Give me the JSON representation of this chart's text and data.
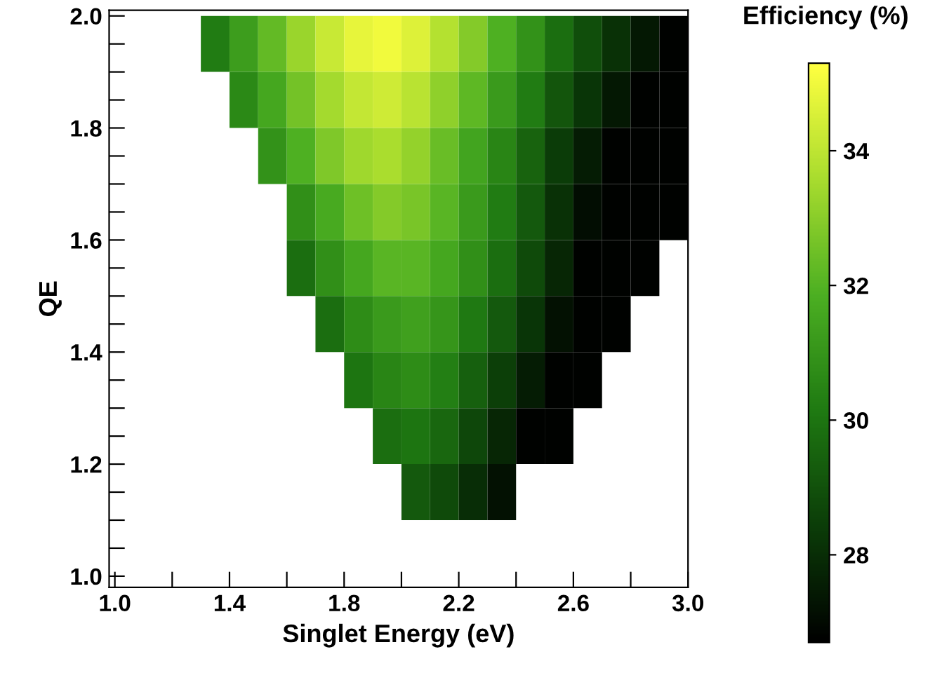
{
  "chart_data": {
    "type": "heatmap",
    "xlabel": "Singlet Energy (eV)",
    "ylabel": "QE",
    "clabel": "Efficiency (%)",
    "x": [
      1.05,
      1.15,
      1.25,
      1.35,
      1.45,
      1.55,
      1.65,
      1.75,
      1.85,
      1.95,
      2.05,
      2.15,
      2.25,
      2.35,
      2.45,
      2.55,
      2.65,
      2.75,
      2.85,
      2.95
    ],
    "y": [
      1.95,
      1.85,
      1.75,
      1.65,
      1.55,
      1.45,
      1.35,
      1.25,
      1.15
    ],
    "cells": [
      [
        null,
        null,
        null,
        30.2,
        31.3,
        32.3,
        33.3,
        34.2,
        34.8,
        35.0,
        34.6,
        33.8,
        32.9,
        31.9,
        30.9,
        29.8,
        28.9,
        28.1,
        27.4,
        26.8
      ],
      [
        null,
        null,
        null,
        null,
        30.6,
        31.6,
        32.6,
        33.5,
        34.1,
        34.3,
        33.9,
        33.1,
        32.2,
        31.2,
        30.2,
        29.1,
        28.2,
        27.4,
        26.8,
        26.8
      ],
      [
        null,
        null,
        null,
        null,
        null,
        30.9,
        31.9,
        32.8,
        33.4,
        33.6,
        33.2,
        32.4,
        31.5,
        30.5,
        29.5,
        28.4,
        27.5,
        26.8,
        26.8,
        26.8
      ],
      [
        null,
        null,
        null,
        null,
        null,
        null,
        30.8,
        31.7,
        32.5,
        32.9,
        32.7,
        32.1,
        31.2,
        30.2,
        29.2,
        28.1,
        27.1,
        26.8,
        26.8,
        26.8
      ],
      [
        null,
        null,
        null,
        null,
        null,
        null,
        29.8,
        30.8,
        31.6,
        32.1,
        32.1,
        31.6,
        30.8,
        29.8,
        28.8,
        27.8,
        26.8,
        26.8,
        26.8,
        null
      ],
      [
        null,
        null,
        null,
        null,
        null,
        null,
        null,
        29.8,
        30.7,
        31.2,
        31.4,
        31.0,
        30.1,
        29.2,
        28.2,
        27.2,
        26.8,
        26.8,
        null,
        null
      ],
      [
        null,
        null,
        null,
        null,
        null,
        null,
        null,
        null,
        30.0,
        30.5,
        30.7,
        30.3,
        29.4,
        28.5,
        27.5,
        26.8,
        26.8,
        null,
        null,
        null
      ],
      [
        null,
        null,
        null,
        null,
        null,
        null,
        null,
        null,
        null,
        29.8,
        30.0,
        29.6,
        28.7,
        27.8,
        26.8,
        26.8,
        null,
        null,
        null,
        null
      ],
      [
        null,
        null,
        null,
        null,
        null,
        null,
        null,
        null,
        null,
        null,
        29.2,
        28.8,
        28.0,
        27.2,
        null,
        null,
        null,
        null,
        null,
        null
      ]
    ],
    "colors": [
      "#000000",
      "#0b3d08",
      "#1f7a12",
      "#4caf22",
      "#a8dc2e",
      "#ffff40"
    ],
    "clim": [
      26.7,
      35.3
    ],
    "cticks": [
      28,
      30,
      32,
      34
    ],
    "xlim": [
      0.98,
      3.0
    ],
    "ylim": [
      0.98,
      2.01
    ],
    "xticks": [
      {
        "value": 1.0,
        "label": "1.0"
      },
      {
        "value": 1.2,
        "label": null
      },
      1.4,
      {
        "value": 1.6,
        "label": null
      },
      1.8,
      {
        "value": 2.0,
        "label": null
      },
      2.2,
      {
        "value": 2.4,
        "label": null
      },
      2.6,
      {
        "value": 2.8,
        "label": null
      },
      {
        "value": 3.0,
        "label": "3.0"
      }
    ],
    "yticks": [
      {
        "value": 1.0,
        "label": "1.0"
      },
      {
        "value": 1.05,
        "label": null
      },
      {
        "value": 1.1,
        "label": null
      },
      {
        "value": 1.15,
        "label": null
      },
      1.2,
      {
        "value": 1.25,
        "label": null
      },
      {
        "value": 1.3,
        "label": null
      },
      {
        "value": 1.35,
        "label": null
      },
      1.4,
      {
        "value": 1.45,
        "label": null
      },
      {
        "value": 1.5,
        "label": null
      },
      {
        "value": 1.55,
        "label": null
      },
      1.6,
      {
        "value": 1.65,
        "label": null
      },
      {
        "value": 1.7,
        "label": null
      },
      {
        "value": 1.75,
        "label": null
      },
      1.8,
      {
        "value": 1.85,
        "label": null
      },
      {
        "value": 1.9,
        "label": null
      },
      {
        "value": 1.95,
        "label": null
      },
      {
        "value": 2.0,
        "label": "2.0"
      }
    ],
    "grid": false
  }
}
